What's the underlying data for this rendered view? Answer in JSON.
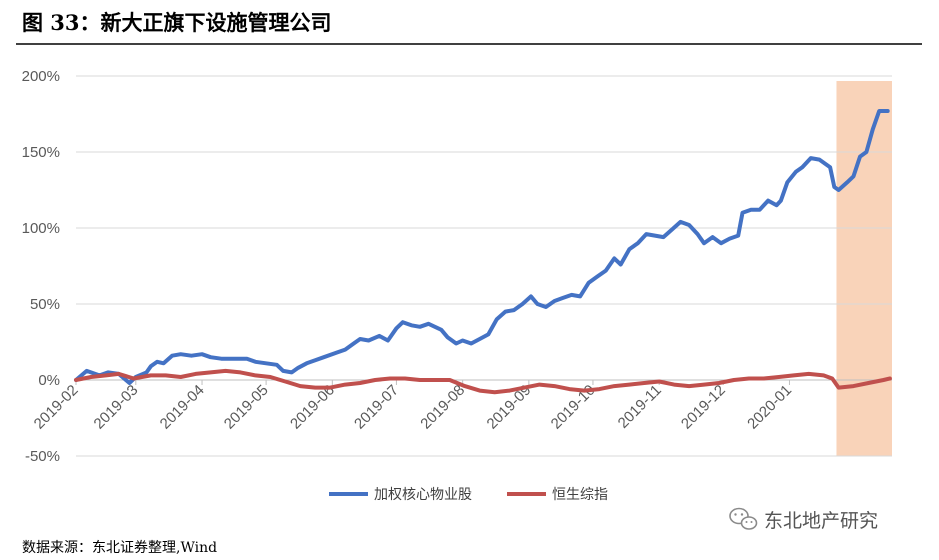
{
  "figure_title": "图 33：新大正旗下设施管理公司",
  "source_note": "数据来源：东北证券整理,Wind",
  "watermark": "东北地产研究",
  "colors": {
    "series_1": "#4472C4",
    "series_2": "#C0504D",
    "highlight": "#F8CBAD",
    "grid": "#D9D9D9"
  },
  "chart_data": {
    "type": "line",
    "title": "",
    "xlabel": "",
    "ylabel": "",
    "ylim": [
      -50,
      200
    ],
    "y_ticks": [
      -50,
      0,
      50,
      100,
      150,
      200
    ],
    "y_tick_labels": [
      "-50%",
      "0%",
      "50%",
      "100%",
      "150%",
      "200%"
    ],
    "x_ticks": [
      "2019-02",
      "2019-03",
      "2019-04",
      "2019-05",
      "2019-06",
      "2019-07",
      "2019-08",
      "2019-09",
      "2019-10",
      "2019-11",
      "2019-12",
      "2020-01"
    ],
    "grid": true,
    "legend_position": "bottom",
    "highlight_period": [
      "2020-01-23",
      "2020-02-17"
    ],
    "series": [
      {
        "name": "加权核心物业股",
        "color": "#4472C4",
        "points": [
          [
            "2019-02-01",
            0
          ],
          [
            "2019-02-06",
            6
          ],
          [
            "2019-02-12",
            3
          ],
          [
            "2019-02-16",
            5
          ],
          [
            "2019-02-21",
            4
          ],
          [
            "2019-02-26",
            -2
          ],
          [
            "2019-03-01",
            2
          ],
          [
            "2019-03-06",
            5
          ],
          [
            "2019-03-08",
            9
          ],
          [
            "2019-03-11",
            12
          ],
          [
            "2019-03-14",
            11
          ],
          [
            "2019-03-18",
            16
          ],
          [
            "2019-03-22",
            17
          ],
          [
            "2019-03-27",
            16
          ],
          [
            "2019-04-01",
            17
          ],
          [
            "2019-04-05",
            15
          ],
          [
            "2019-04-10",
            14
          ],
          [
            "2019-04-15",
            14
          ],
          [
            "2019-04-22",
            14
          ],
          [
            "2019-04-26",
            12
          ],
          [
            "2019-05-01",
            11
          ],
          [
            "2019-05-06",
            10
          ],
          [
            "2019-05-09",
            6
          ],
          [
            "2019-05-13",
            5
          ],
          [
            "2019-05-16",
            8
          ],
          [
            "2019-05-20",
            11
          ],
          [
            "2019-05-24",
            13
          ],
          [
            "2019-05-28",
            15
          ],
          [
            "2019-06-03",
            18
          ],
          [
            "2019-06-07",
            20
          ],
          [
            "2019-06-11",
            24
          ],
          [
            "2019-06-14",
            27
          ],
          [
            "2019-06-18",
            26
          ],
          [
            "2019-06-23",
            29
          ],
          [
            "2019-06-27",
            26
          ],
          [
            "2019-07-01",
            34
          ],
          [
            "2019-07-04",
            38
          ],
          [
            "2019-07-08",
            36
          ],
          [
            "2019-07-12",
            35
          ],
          [
            "2019-07-16",
            37
          ],
          [
            "2019-07-22",
            33
          ],
          [
            "2019-07-25",
            28
          ],
          [
            "2019-07-29",
            24
          ],
          [
            "2019-08-01",
            26
          ],
          [
            "2019-08-05",
            24
          ],
          [
            "2019-08-09",
            27
          ],
          [
            "2019-08-13",
            30
          ],
          [
            "2019-08-17",
            40
          ],
          [
            "2019-08-21",
            45
          ],
          [
            "2019-08-25",
            46
          ],
          [
            "2019-08-29",
            50
          ],
          [
            "2019-09-02",
            55
          ],
          [
            "2019-09-05",
            50
          ],
          [
            "2019-09-09",
            48
          ],
          [
            "2019-09-13",
            52
          ],
          [
            "2019-09-17",
            54
          ],
          [
            "2019-09-21",
            56
          ],
          [
            "2019-09-25",
            55
          ],
          [
            "2019-09-29",
            64
          ],
          [
            "2019-10-03",
            68
          ],
          [
            "2019-10-07",
            72
          ],
          [
            "2019-10-11",
            80
          ],
          [
            "2019-10-14",
            76
          ],
          [
            "2019-10-18",
            86
          ],
          [
            "2019-10-22",
            90
          ],
          [
            "2019-10-26",
            96
          ],
          [
            "2019-10-30",
            95
          ],
          [
            "2019-11-03",
            94
          ],
          [
            "2019-11-07",
            99
          ],
          [
            "2019-11-11",
            104
          ],
          [
            "2019-11-15",
            102
          ],
          [
            "2019-11-19",
            96
          ],
          [
            "2019-11-22",
            90
          ],
          [
            "2019-11-26",
            94
          ],
          [
            "2019-11-30",
            90
          ],
          [
            "2019-12-04",
            93
          ],
          [
            "2019-12-08",
            95
          ],
          [
            "2019-12-10",
            110
          ],
          [
            "2019-12-14",
            112
          ],
          [
            "2019-12-18",
            112
          ],
          [
            "2019-12-22",
            118
          ],
          [
            "2019-12-26",
            115
          ],
          [
            "2019-12-28",
            118
          ],
          [
            "2019-12-31",
            130
          ],
          [
            "2020-01-04",
            137
          ],
          [
            "2020-01-07",
            140
          ],
          [
            "2020-01-11",
            146
          ],
          [
            "2020-01-15",
            145
          ],
          [
            "2020-01-20",
            140
          ],
          [
            "2020-01-22",
            127
          ],
          [
            "2020-01-24",
            125
          ],
          [
            "2020-01-28",
            130
          ],
          [
            "2020-01-31",
            134
          ],
          [
            "2020-02-03",
            147
          ],
          [
            "2020-02-06",
            150
          ],
          [
            "2020-02-09",
            165
          ],
          [
            "2020-02-12",
            177
          ],
          [
            "2020-02-16",
            177
          ]
        ]
      },
      {
        "name": "恒生综指",
        "color": "#C0504D",
        "points": [
          [
            "2019-02-01",
            0
          ],
          [
            "2019-02-08",
            2
          ],
          [
            "2019-02-15",
            3
          ],
          [
            "2019-02-21",
            4
          ],
          [
            "2019-02-28",
            1
          ],
          [
            "2019-03-08",
            3
          ],
          [
            "2019-03-15",
            3
          ],
          [
            "2019-03-22",
            2
          ],
          [
            "2019-03-29",
            4
          ],
          [
            "2019-04-05",
            5
          ],
          [
            "2019-04-12",
            6
          ],
          [
            "2019-04-19",
            5
          ],
          [
            "2019-04-26",
            3
          ],
          [
            "2019-05-03",
            2
          ],
          [
            "2019-05-10",
            -1
          ],
          [
            "2019-05-17",
            -4
          ],
          [
            "2019-05-24",
            -5
          ],
          [
            "2019-05-31",
            -5
          ],
          [
            "2019-06-07",
            -3
          ],
          [
            "2019-06-14",
            -2
          ],
          [
            "2019-06-21",
            0
          ],
          [
            "2019-06-28",
            1
          ],
          [
            "2019-07-05",
            1
          ],
          [
            "2019-07-12",
            0
          ],
          [
            "2019-07-19",
            0
          ],
          [
            "2019-07-26",
            0
          ],
          [
            "2019-08-02",
            -4
          ],
          [
            "2019-08-09",
            -7
          ],
          [
            "2019-08-16",
            -8
          ],
          [
            "2019-08-23",
            -7
          ],
          [
            "2019-08-30",
            -5
          ],
          [
            "2019-09-06",
            -3
          ],
          [
            "2019-09-13",
            -4
          ],
          [
            "2019-09-20",
            -6
          ],
          [
            "2019-09-27",
            -7
          ],
          [
            "2019-10-04",
            -6
          ],
          [
            "2019-10-11",
            -4
          ],
          [
            "2019-10-18",
            -3
          ],
          [
            "2019-10-25",
            -2
          ],
          [
            "2019-11-01",
            -1
          ],
          [
            "2019-11-08",
            -3
          ],
          [
            "2019-11-15",
            -4
          ],
          [
            "2019-11-22",
            -3
          ],
          [
            "2019-11-29",
            -2
          ],
          [
            "2019-12-06",
            0
          ],
          [
            "2019-12-13",
            1
          ],
          [
            "2019-12-20",
            1
          ],
          [
            "2019-12-27",
            2
          ],
          [
            "2020-01-03",
            3
          ],
          [
            "2020-01-10",
            4
          ],
          [
            "2020-01-17",
            3
          ],
          [
            "2020-01-21",
            1
          ],
          [
            "2020-01-24",
            -5
          ],
          [
            "2020-01-31",
            -4
          ],
          [
            "2020-02-07",
            -2
          ],
          [
            "2020-02-14",
            0
          ],
          [
            "2020-02-17",
            1
          ]
        ]
      }
    ]
  }
}
